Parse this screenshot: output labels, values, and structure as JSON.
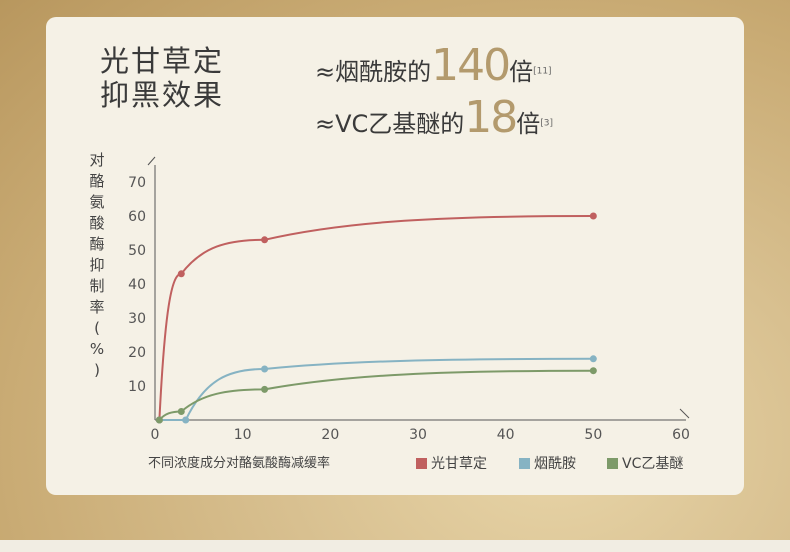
{
  "title": {
    "line1": "光甘草定",
    "line2": "抑黑效果"
  },
  "comparisons": [
    {
      "approx": "≈",
      "name": "烟酰胺的",
      "value": "140",
      "unit": "倍",
      "ref": "[11]"
    },
    {
      "approx": "≈",
      "name": "VC乙基醚的",
      "value": "18",
      "unit": "倍",
      "ref": "[3]"
    }
  ],
  "colors": {
    "glabridin": "#c0605f",
    "niacinamide": "#86b3c3",
    "vc_ethyl": "#7d9a69"
  },
  "chart_data": {
    "type": "line",
    "xlabel": "不同浓度成分对酪氨酸酶减缓率",
    "ylabel": "对酪氨酸酶抑制率(%)",
    "xlim": [
      0,
      60
    ],
    "ylim": [
      0,
      70
    ],
    "xticks": [
      0,
      10,
      20,
      30,
      40,
      50,
      60
    ],
    "yticks": [
      10,
      20,
      30,
      40,
      50,
      60,
      70
    ],
    "legend_position": "bottom-right",
    "series": [
      {
        "name": "光甘草定",
        "color": "#c0605f",
        "points": [
          [
            0.5,
            0
          ],
          [
            3,
            43
          ],
          [
            12.5,
            53
          ],
          [
            50,
            60
          ]
        ]
      },
      {
        "name": "烟酰胺",
        "color": "#86b3c3",
        "points": [
          [
            0.5,
            0
          ],
          [
            3.5,
            0
          ],
          [
            12.5,
            15
          ],
          [
            50,
            18
          ]
        ]
      },
      {
        "name": "VC乙基醚",
        "color": "#7d9a69",
        "points": [
          [
            0.5,
            0
          ],
          [
            3,
            2.5
          ],
          [
            12.5,
            9
          ],
          [
            50,
            14.5
          ]
        ]
      }
    ]
  }
}
